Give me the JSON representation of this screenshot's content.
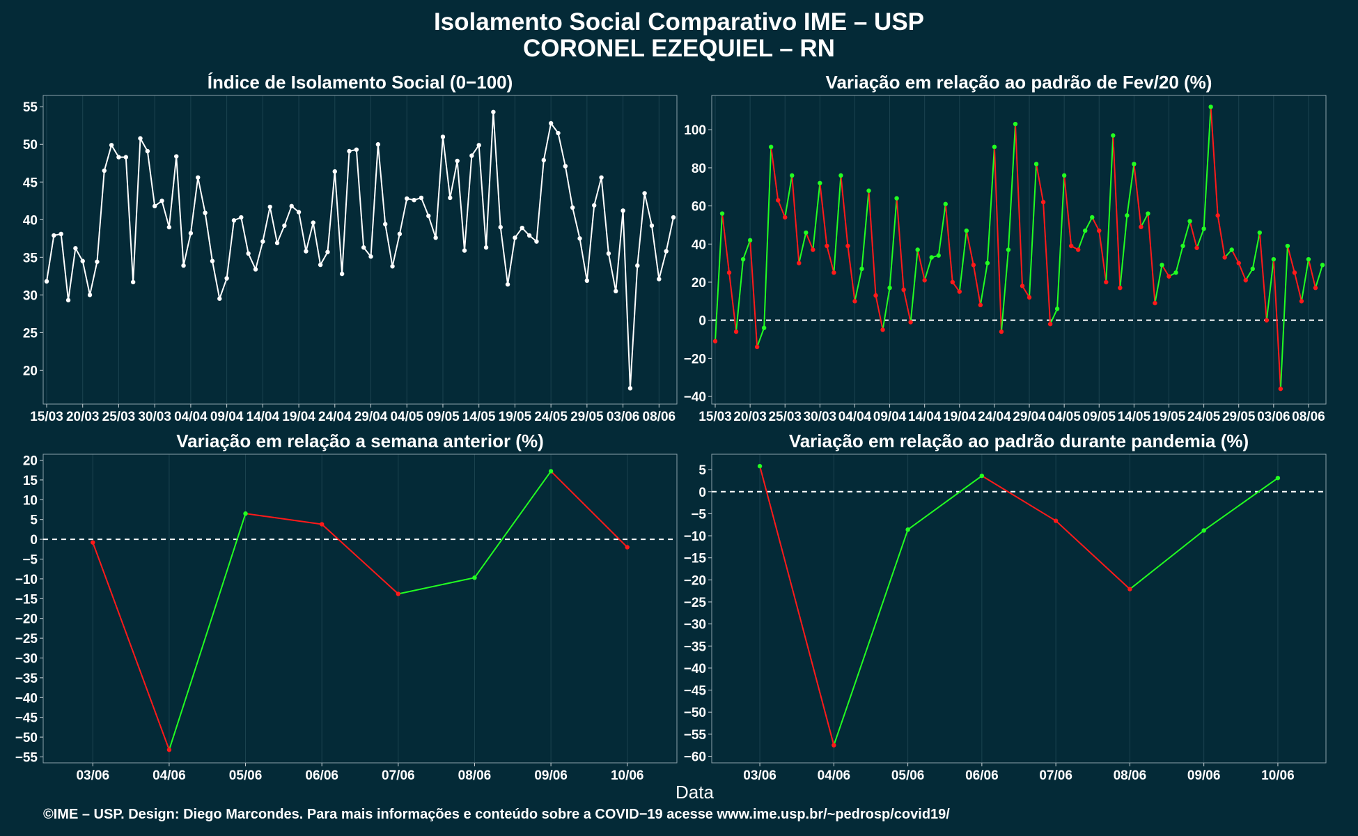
{
  "header": {
    "title": "Isolamento Social Comparativo IME – USP",
    "subtitle": "CORONEL EZEQUIEL – RN"
  },
  "footer": {
    "credit": "©IME – USP. Design: Diego Marcondes. Para mais informações e conteúdo sobre a COVID−19 acesse www.ime.usp.br/~pedrosp/covid19/"
  },
  "colors": {
    "background": "#042a37",
    "axis_text": "#ffffff",
    "positive": "#22ff22",
    "negative": "#ff1a1a",
    "line_white": "#ffffff",
    "grid": "#1c4350"
  },
  "chart_data": [
    {
      "id": "isolation",
      "type": "line",
      "title": "Índice de Isolamento Social (0−100)",
      "xlabel": "",
      "ylabel": "",
      "ylim": [
        15.5,
        56.5
      ],
      "yticks": [
        20,
        25,
        30,
        35,
        40,
        45,
        50,
        55
      ],
      "xticks": [
        "15/03",
        "20/03",
        "25/03",
        "30/03",
        "04/04",
        "09/04",
        "14/04",
        "19/04",
        "24/04",
        "29/04",
        "04/05",
        "09/05",
        "14/05",
        "19/05",
        "24/05",
        "29/05",
        "03/06",
        "08/06"
      ],
      "xtick_positions": [
        0,
        5,
        10,
        15,
        20,
        25,
        30,
        35,
        40,
        45,
        50,
        55,
        60,
        65,
        70,
        75,
        80,
        85
      ],
      "color": "#ffffff",
      "values": [
        31.8,
        37.9,
        38.1,
        29.3,
        36.2,
        34.5,
        30.0,
        34.4,
        46.5,
        49.9,
        48.3,
        48.3,
        31.7,
        50.8,
        49.1,
        41.8,
        42.5,
        39.0,
        48.4,
        33.9,
        38.2,
        45.6,
        40.9,
        34.5,
        29.5,
        32.2,
        39.9,
        40.3,
        35.5,
        33.4,
        37.1,
        41.7,
        36.9,
        39.2,
        41.8,
        41.0,
        35.8,
        39.6,
        34.0,
        35.7,
        46.4,
        32.8,
        49.1,
        49.3,
        36.3,
        35.1,
        50.0,
        39.4,
        33.8,
        38.1,
        42.8,
        42.6,
        42.9,
        40.5,
        37.6,
        51.0,
        42.9,
        47.8,
        35.9,
        48.5,
        49.9,
        36.3,
        54.3,
        39.0,
        31.4,
        37.6,
        38.9,
        37.9,
        37.1,
        47.9,
        52.8,
        51.5,
        47.1,
        41.6,
        37.5,
        31.9,
        41.9,
        45.6,
        35.5,
        30.5,
        41.2,
        17.6,
        33.9,
        43.5,
        39.2,
        32.1,
        35.8,
        40.3
      ]
    },
    {
      "id": "variation_feb",
      "type": "line",
      "title": "Variação em relação ao padrão de Fev/20 (%)",
      "xlabel": "",
      "ylabel": "",
      "ylim": [
        -44,
        118
      ],
      "yticks": [
        -40,
        -20,
        0,
        20,
        40,
        60,
        80,
        100
      ],
      "xticks": [
        "15/03",
        "20/03",
        "25/03",
        "30/03",
        "04/04",
        "09/04",
        "14/04",
        "19/04",
        "24/04",
        "29/04",
        "04/05",
        "09/05",
        "14/05",
        "19/05",
        "24/05",
        "29/05",
        "03/06",
        "08/06"
      ],
      "xtick_positions": [
        0,
        5,
        10,
        15,
        20,
        25,
        30,
        35,
        40,
        45,
        50,
        55,
        60,
        65,
        70,
        75,
        80,
        85
      ],
      "reference_line": 0,
      "values": [
        -11,
        56,
        25,
        -6,
        32,
        42,
        -14,
        -4,
        91,
        63,
        54,
        76,
        30,
        46,
        37,
        72,
        39,
        25,
        76,
        39,
        10,
        27,
        68,
        13,
        -5,
        17,
        64,
        16,
        -1,
        37,
        21,
        33,
        34,
        61,
        20,
        15,
        47,
        29,
        8,
        30,
        91,
        -6,
        37,
        103,
        18,
        12,
        82,
        62,
        -2,
        6,
        76,
        39,
        37,
        47,
        54,
        47,
        20,
        97,
        17,
        55,
        82,
        49,
        56,
        9,
        29,
        23,
        25,
        39,
        52,
        38,
        48,
        112,
        55,
        33,
        37,
        30,
        21,
        27,
        46,
        0,
        32,
        -36,
        39,
        25,
        10,
        32,
        17,
        29
      ]
    },
    {
      "id": "variation_week",
      "type": "line",
      "title": "Variação em relação a semana anterior (%)",
      "xlabel": "Data",
      "ylabel": "",
      "categories": [
        "03/06",
        "04/06",
        "05/06",
        "06/06",
        "07/06",
        "08/06",
        "09/06",
        "10/06"
      ],
      "ylim": [
        -56.5,
        21.5
      ],
      "yticks": [
        -55,
        -50,
        -45,
        -40,
        -35,
        -30,
        -25,
        -20,
        -15,
        -10,
        -5,
        0,
        5,
        10,
        15,
        20
      ],
      "reference_line": 0,
      "values": [
        -0.8,
        -53.2,
        6.5,
        3.8,
        -13.8,
        -9.7,
        17.2,
        -2.0
      ]
    },
    {
      "id": "variation_pandemic",
      "type": "line",
      "title": "Variação em relação ao padrão durante pandemia (%)",
      "xlabel": "Data",
      "ylabel": "",
      "categories": [
        "03/06",
        "04/06",
        "05/06",
        "06/06",
        "07/06",
        "08/06",
        "09/06",
        "10/06"
      ],
      "ylim": [
        -61.5,
        8.5
      ],
      "yticks": [
        -60,
        -55,
        -50,
        -45,
        -40,
        -35,
        -30,
        -25,
        -20,
        -15,
        -10,
        -5,
        0,
        5
      ],
      "reference_line": 0,
      "values": [
        5.8,
        -57.5,
        -8.6,
        3.6,
        -6.6,
        -22.1,
        -8.8,
        3.1
      ]
    }
  ]
}
